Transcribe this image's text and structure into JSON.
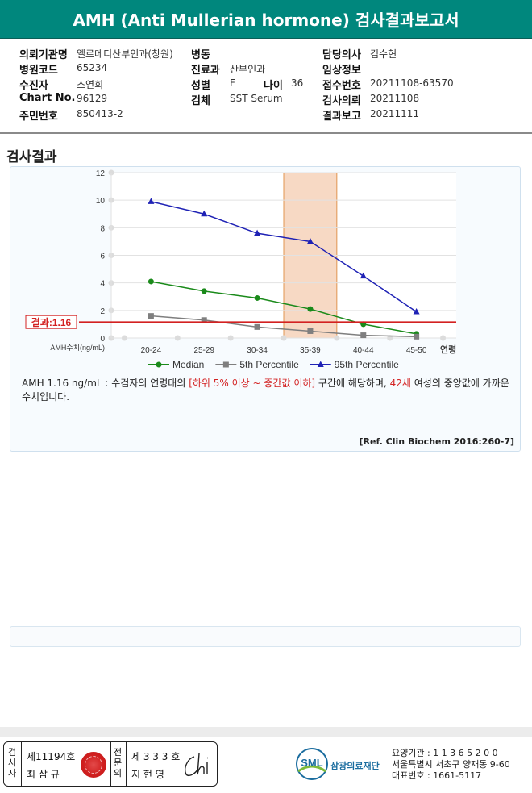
{
  "header": {
    "title": "AMH (Anti Mullerian hormone) 검사결과보고서"
  },
  "info": {
    "hospital_label": "의뢰기관명",
    "hospital": "엘르메디산부인과(창원)",
    "ward_label": "병동",
    "ward": "",
    "doctor_label": "담당의사",
    "doctor": "김수현",
    "code_label": "병원코드",
    "code": "65234",
    "dept_label": "진료과",
    "dept": "산부인과",
    "clinical_label": "임상정보",
    "clinical": "",
    "patient_label": "수진자",
    "patient": "조연희",
    "sex_label": "성별",
    "sex": "F",
    "age_label": "나이",
    "age": "36",
    "receipt_label": "접수번호",
    "receipt": "20211108-63570",
    "chart_label": "Chart No.",
    "chart": "96129",
    "specimen_label": "검체",
    "specimen": "SST Serum",
    "request_label": "검사의뢰",
    "request": "20211108",
    "id_label": "주민번호",
    "id": "850413-2",
    "report_label": "결과보고",
    "report": "20211111"
  },
  "section": {
    "title": "검사결과"
  },
  "chart_data": {
    "type": "line",
    "categories": [
      "20-24",
      "25-29",
      "30-34",
      "35-39",
      "40-44",
      "45-50"
    ],
    "xlabel": "연령",
    "ylabel": "AMH수치(ng/mL)",
    "ylim": [
      0,
      12
    ],
    "yticks": [
      "0",
      "2",
      "4",
      "6",
      "8",
      "10",
      "12"
    ],
    "grid": true,
    "legend": "bottom",
    "highlight_category": "35-39",
    "result_line": {
      "value": 1.16,
      "label": "결과:1.16"
    },
    "series": [
      {
        "name": "Median",
        "values": [
          4.1,
          3.4,
          2.9,
          2.1,
          1.0,
          0.3
        ],
        "color": "#1a8a1a",
        "marker": "circle"
      },
      {
        "name": "5th Percentile",
        "values": [
          1.6,
          1.3,
          0.8,
          0.5,
          0.2,
          0.1
        ],
        "color": "#7f7f7f",
        "marker": "square"
      },
      {
        "name": "95th Percentile",
        "values": [
          9.9,
          9.0,
          7.6,
          7.0,
          4.5,
          1.9
        ],
        "color": "#1f22b5",
        "marker": "triangle"
      }
    ],
    "colors": {
      "result": "#d32121",
      "highlight_fill": "#f7d9c4",
      "highlight_stroke": "#e0954f"
    }
  },
  "result_text": {
    "part1": "AMH  1.16 ng/mL : 수검자의 연령대의 ",
    "range": "[하위 5% 이상 ~ 중간값 이하]",
    "part2": " 구간에 해당하며, ",
    "age": "42세",
    "part3": " 여성의 중앙값에 가까운 수치입니다."
  },
  "reference": "[Ref. Clin Biochem 2016:260-7]",
  "footer": {
    "examiner_label": "검사자",
    "examiner_no": "제11194호",
    "examiner_name": "최 삼 규",
    "specialist_label": "전문의",
    "specialist_no": "제 3 3 3 호",
    "specialist_name": "지 현 영",
    "logo_text": "SML",
    "org_name": "삼광의료재단",
    "org_line1": "요양기관 : 1 1 3 6 5 2 0 0",
    "org_line2": "서울특별시 서초구 양재동 9-60",
    "org_line3": "대표번호 : 1661-5117"
  }
}
